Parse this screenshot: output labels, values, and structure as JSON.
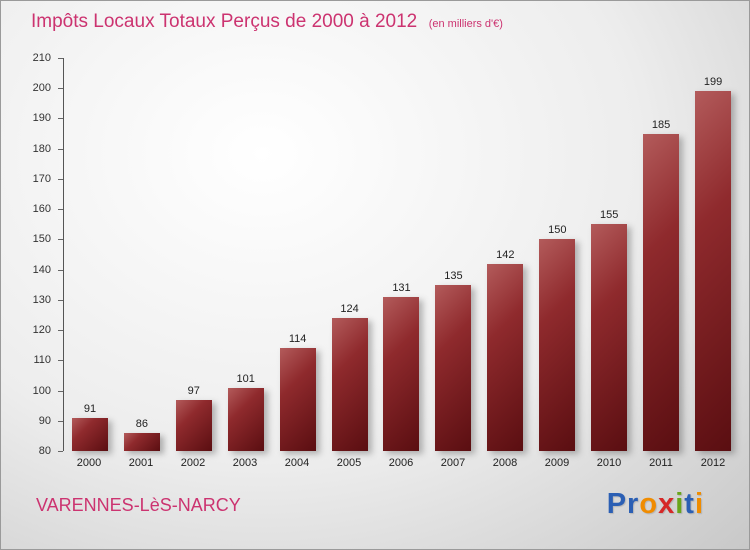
{
  "header": {
    "title": "Impôts Locaux Totaux Perçus de 2000 à 2012",
    "subtitle": "(en milliers d'€)"
  },
  "footer": {
    "location": "VARENNES-LèS-NARCY",
    "logo_text": "Proxiti",
    "logo_letters": [
      {
        "ch": "P",
        "color": "#2b5fb4"
      },
      {
        "ch": "r",
        "color": "#2b5fb4"
      },
      {
        "ch": "o",
        "color": "#f08c00"
      },
      {
        "ch": "x",
        "color": "#d62828"
      },
      {
        "ch": "i",
        "color": "#69a51a"
      },
      {
        "ch": "t",
        "color": "#2b5fb4"
      },
      {
        "ch": "i",
        "color": "#f08c00"
      }
    ]
  },
  "chart_data": {
    "type": "bar",
    "title": "Impôts Locaux Totaux Perçus de 2000 à 2012 (en milliers d'€)",
    "categories": [
      "2000",
      "2001",
      "2002",
      "2003",
      "2004",
      "2005",
      "2006",
      "2007",
      "2008",
      "2009",
      "2010",
      "2011",
      "2012"
    ],
    "values": [
      91,
      86,
      97,
      101,
      114,
      124,
      131,
      135,
      142,
      150,
      155,
      185,
      199
    ],
    "xlabel": "",
    "ylabel": "",
    "ylim": [
      80,
      210
    ],
    "ytick_step": 10,
    "grid": false,
    "legend": false,
    "bar_color_top": "#b35b5b",
    "bar_color_bottom": "#5a0e11",
    "accent_color": "#cc3370"
  }
}
